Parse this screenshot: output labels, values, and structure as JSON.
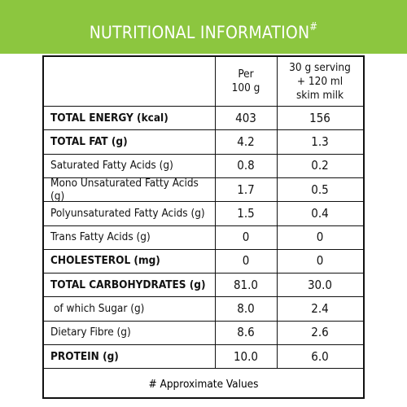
{
  "header": {
    "title": "NUTRITIONAL INFORMATION",
    "title_mark": "#"
  },
  "table": {
    "columns": [
      [
        "Per",
        "100 g"
      ],
      [
        "30 g serving",
        "+ 120 ml",
        "skim milk"
      ]
    ],
    "rows": [
      [
        "TOTAL ENERGY (kcal)",
        "403",
        "156"
      ],
      [
        "TOTAL FAT (g)",
        "4.2",
        "1.3"
      ],
      [
        "Saturated Fatty Acids (g)",
        "0.8",
        "0.2"
      ],
      [
        "Mono Unsaturated Fatty Acids (g)",
        "1.7",
        "0.5"
      ],
      [
        "Polyunsaturated Fatty Acids (g)",
        "1.5",
        "0.4"
      ],
      [
        "Trans Fatty Acids (g)",
        "0",
        "0"
      ],
      [
        "CHOLESTEROL (mg)",
        "0",
        "0"
      ],
      [
        "TOTAL CARBOHYDRATES (g)",
        "81.0",
        "30.0"
      ],
      [
        "of which Sugar (g)",
        "8.0",
        "2.4"
      ],
      [
        "Dietary Fibre (g)",
        "8.6",
        "2.6"
      ],
      [
        "PROTEIN (g)",
        "10.0",
        "6.0"
      ]
    ],
    "footnote": "# Approximate Values"
  }
}
